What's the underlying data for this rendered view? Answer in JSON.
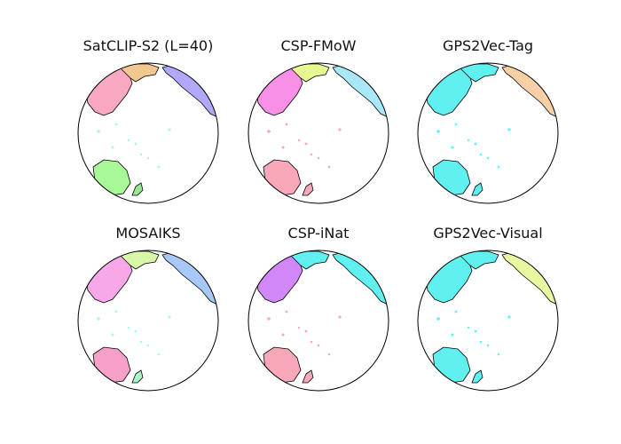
{
  "chart_data": {
    "type": "map",
    "projection": "orthographic",
    "view": "Pacific-centered globe",
    "layout": {
      "rows": 2,
      "cols": 3
    },
    "panels": [
      {
        "title": "SatCLIP-S2 (L=40)",
        "colors": {
          "asia": "#f8a8c0",
          "siberia": "#f0c890",
          "north_america": "#b0a8f8",
          "australia": "#a8f898",
          "new_zealand": "#98e890",
          "islands": "#a8f8e8"
        }
      },
      {
        "title": "CSP-FMoW",
        "colors": {
          "asia": "#f890e8",
          "siberia": "#e8f890",
          "north_america": "#a8e8f8",
          "australia": "#f8a8b8",
          "new_zealand": "#f8a8b8",
          "islands": "#f8a8b8"
        }
      },
      {
        "title": "GPS2Vec-Tag",
        "colors": {
          "asia": "#60f0f0",
          "siberia": "#60f0f0",
          "north_america": "#f8d0a8",
          "australia": "#60f0f0",
          "new_zealand": "#60f0f0",
          "islands": "#60f0f0"
        }
      },
      {
        "title": "MOSAIKS",
        "colors": {
          "asia": "#f8a8e8",
          "siberia": "#d8f8a8",
          "north_america": "#a8c8f8",
          "australia": "#f8a0c8",
          "new_zealand": "#a8f8c8",
          "islands": "#a8f8f8"
        }
      },
      {
        "title": "CSP-iNat",
        "colors": {
          "asia": "#d088f8",
          "siberia": "#60f0f0",
          "north_america": "#60f0f0",
          "australia": "#f8a8b8",
          "new_zealand": "#f8a8b8",
          "islands": "#f8a8b8"
        }
      },
      {
        "title": "GPS2Vec-Visual",
        "colors": {
          "asia": "#60f0f0",
          "siberia": "#60f0f0",
          "north_america": "#e8f8a0",
          "australia": "#60f0f0",
          "new_zealand": "#60f0f0",
          "islands": "#60f0f0"
        }
      }
    ]
  }
}
